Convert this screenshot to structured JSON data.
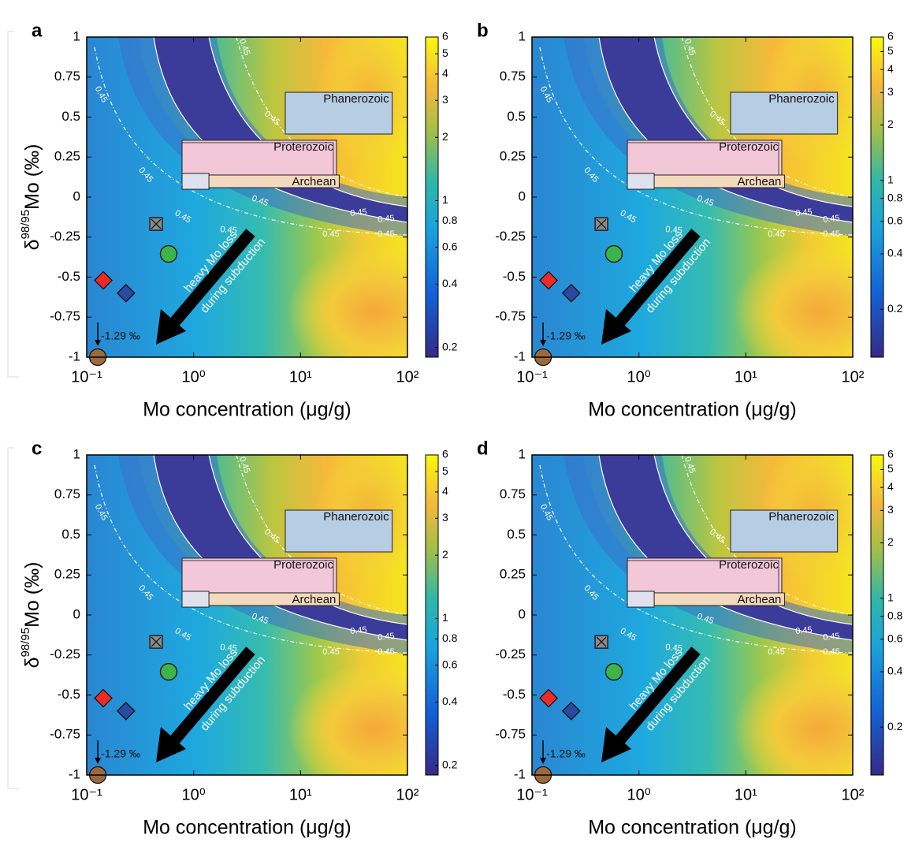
{
  "chart_data": [
    {
      "type": "contour",
      "panel_label": "a",
      "xlabel": "Mo concentration (μg/g)",
      "ylabel": {
        "prefix": "δ",
        "superscript": "98/95",
        "suffix": "Mo (‰)"
      },
      "xscale": "log",
      "xlim": [
        0.1,
        100
      ],
      "xticks": [
        {
          "value": 0.1,
          "label": "10⁻¹"
        },
        {
          "value": 1,
          "label": "10⁰"
        },
        {
          "value": 10,
          "label": "10¹"
        },
        {
          "value": 100,
          "label": "10²"
        }
      ],
      "ylim": [
        -1,
        1
      ],
      "yticks": [
        -1,
        -0.75,
        -0.5,
        -0.25,
        0,
        0.25,
        0.5,
        0.75,
        1
      ],
      "clim": [
        0.18,
        6
      ],
      "cscale": "log",
      "cticks": [
        0.2,
        0.4,
        0.6,
        0.8,
        1,
        2,
        3,
        4,
        5,
        6
      ],
      "contour_level": 0.45,
      "regions": [
        {
          "name": "Phanerozoic",
          "x": [
            7.2,
            72
          ],
          "y": [
            0.394,
            0.655
          ],
          "color": "#b7cde3"
        },
        {
          "name": "Proterozoic",
          "x": [
            0.78,
            21.7
          ],
          "y": [
            0.138,
            0.355
          ],
          "color": "#f2c7d8"
        },
        {
          "name": "Archean",
          "x": [
            0.78,
            23
          ],
          "y": [
            0.059,
            0.138
          ],
          "color": "#f3d9bd"
        },
        {
          "x": [
            0.78,
            1.39
          ],
          "y": [
            0.049,
            0.148
          ],
          "color": "#dfe1ee"
        }
      ],
      "points": [
        {
          "x": 0.143,
          "y": -0.52,
          "marker": "diamond",
          "color": "#ee2a24"
        },
        {
          "x": 0.233,
          "y": -0.6,
          "marker": "diamond",
          "color": "#2a4aa0"
        },
        {
          "x": 0.584,
          "y": -0.355,
          "marker": "circle",
          "color": "#3cb44a"
        },
        {
          "x": 0.446,
          "y": -0.168,
          "marker": "xsquare",
          "color": "#8a8a8a"
        },
        {
          "x": 0.127,
          "y": -1,
          "marker": "circle",
          "color": "#9b6a3c"
        }
      ],
      "annotations": [
        "heavy Mo loss",
        "during subduction",
        "-1.29 ‰"
      ]
    },
    {
      "type": "contour",
      "panel_label": "b",
      "xlabel": "Mo concentration (μg/g)",
      "xscale": "log",
      "xlim": [
        0.1,
        100
      ],
      "xticks": [
        {
          "value": 0.1,
          "label": "10⁻¹"
        },
        {
          "value": 1,
          "label": "10⁰"
        },
        {
          "value": 10,
          "label": "10¹"
        },
        {
          "value": 100,
          "label": "10²"
        }
      ],
      "ylim": [
        -1,
        1
      ],
      "yticks": [
        -1,
        -0.75,
        -0.5,
        -0.25,
        0,
        0.25,
        0.5,
        0.75,
        1
      ],
      "clim": [
        0.11,
        6
      ],
      "cscale": "log",
      "cticks": [
        0.2,
        0.4,
        0.6,
        0.8,
        1,
        2,
        3,
        4,
        5,
        6
      ],
      "contour_level": 0.45,
      "regions": [
        {
          "name": "Phanerozoic",
          "x": [
            7.2,
            72
          ],
          "y": [
            0.394,
            0.655
          ],
          "color": "#b7cde3"
        },
        {
          "name": "Proterozoic",
          "x": [
            0.78,
            21.7
          ],
          "y": [
            0.138,
            0.355
          ],
          "color": "#f2c7d8"
        },
        {
          "name": "Archean",
          "x": [
            0.78,
            23
          ],
          "y": [
            0.059,
            0.138
          ],
          "color": "#f3d9bd"
        },
        {
          "x": [
            0.78,
            1.39
          ],
          "y": [
            0.049,
            0.148
          ],
          "color": "#dfe1ee"
        }
      ],
      "points": [
        {
          "x": 0.143,
          "y": -0.52,
          "marker": "diamond",
          "color": "#ee2a24"
        },
        {
          "x": 0.233,
          "y": -0.6,
          "marker": "diamond",
          "color": "#2a4aa0"
        },
        {
          "x": 0.584,
          "y": -0.355,
          "marker": "circle",
          "color": "#3cb44a"
        },
        {
          "x": 0.446,
          "y": -0.168,
          "marker": "xsquare",
          "color": "#8a8a8a"
        },
        {
          "x": 0.127,
          "y": -1,
          "marker": "circle",
          "color": "#9b6a3c"
        }
      ],
      "annotations": [
        "heavy Mo loss",
        "during subduction",
        "-1.29 ‰"
      ]
    },
    {
      "type": "contour",
      "panel_label": "c",
      "xlabel": "Mo concentration (μg/g)",
      "ylabel": {
        "prefix": "δ",
        "superscript": "98/95",
        "suffix": "Mo (‰)"
      },
      "xscale": "log",
      "xlim": [
        0.1,
        100
      ],
      "xticks": [
        {
          "value": 0.1,
          "label": "10⁻¹"
        },
        {
          "value": 1,
          "label": "10⁰"
        },
        {
          "value": 10,
          "label": "10¹"
        },
        {
          "value": 100,
          "label": "10²"
        }
      ],
      "ylim": [
        -1,
        1
      ],
      "yticks": [
        -1,
        -0.75,
        -0.5,
        -0.25,
        0,
        0.25,
        0.5,
        0.75,
        1
      ],
      "clim": [
        0.18,
        6
      ],
      "cscale": "log",
      "cticks": [
        0.2,
        0.4,
        0.6,
        0.8,
        1,
        2,
        3,
        4,
        5,
        6
      ],
      "contour_level": 0.45,
      "regions": [
        {
          "name": "Phanerozoic",
          "x": [
            7.2,
            72
          ],
          "y": [
            0.394,
            0.655
          ],
          "color": "#b7cde3"
        },
        {
          "name": "Proterozoic",
          "x": [
            0.78,
            21.7
          ],
          "y": [
            0.138,
            0.355
          ],
          "color": "#f2c7d8"
        },
        {
          "name": "Archean",
          "x": [
            0.78,
            23
          ],
          "y": [
            0.059,
            0.138
          ],
          "color": "#f3d9bd"
        },
        {
          "x": [
            0.78,
            1.39
          ],
          "y": [
            0.049,
            0.148
          ],
          "color": "#dfe1ee"
        }
      ],
      "points": [
        {
          "x": 0.143,
          "y": -0.52,
          "marker": "diamond",
          "color": "#ee2a24"
        },
        {
          "x": 0.233,
          "y": -0.6,
          "marker": "diamond",
          "color": "#2a4aa0"
        },
        {
          "x": 0.584,
          "y": -0.355,
          "marker": "circle",
          "color": "#3cb44a"
        },
        {
          "x": 0.446,
          "y": -0.168,
          "marker": "xsquare",
          "color": "#8a8a8a"
        },
        {
          "x": 0.127,
          "y": -1,
          "marker": "circle",
          "color": "#9b6a3c"
        }
      ],
      "annotations": [
        "heavy Mo loss",
        "during subduction",
        "-1.29 ‰"
      ]
    },
    {
      "type": "contour",
      "panel_label": "d",
      "xlabel": "Mo concentration (μg/g)",
      "xscale": "log",
      "xlim": [
        0.1,
        100
      ],
      "xticks": [
        {
          "value": 0.1,
          "label": "10⁻¹"
        },
        {
          "value": 1,
          "label": "10⁰"
        },
        {
          "value": 10,
          "label": "10¹"
        },
        {
          "value": 100,
          "label": "10²"
        }
      ],
      "ylim": [
        -1,
        1
      ],
      "yticks": [
        -1,
        -0.75,
        -0.5,
        -0.25,
        0,
        0.25,
        0.5,
        0.75,
        1
      ],
      "clim": [
        0.11,
        6
      ],
      "cscale": "log",
      "cticks": [
        0.2,
        0.4,
        0.6,
        0.8,
        1,
        2,
        3,
        4,
        5,
        6
      ],
      "contour_level": 0.45,
      "regions": [
        {
          "name": "Phanerozoic",
          "x": [
            7.2,
            72
          ],
          "y": [
            0.394,
            0.655
          ],
          "color": "#b7cde3"
        },
        {
          "name": "Proterozoic",
          "x": [
            0.78,
            21.7
          ],
          "y": [
            0.138,
            0.355
          ],
          "color": "#f2c7d8"
        },
        {
          "name": "Archean",
          "x": [
            0.78,
            23
          ],
          "y": [
            0.059,
            0.138
          ],
          "color": "#f3d9bd"
        },
        {
          "x": [
            0.78,
            1.39
          ],
          "y": [
            0.049,
            0.148
          ],
          "color": "#dfe1ee"
        }
      ],
      "points": [
        {
          "x": 0.143,
          "y": -0.52,
          "marker": "diamond",
          "color": "#ee2a24"
        },
        {
          "x": 0.233,
          "y": -0.6,
          "marker": "diamond",
          "color": "#2a4aa0"
        },
        {
          "x": 0.584,
          "y": -0.355,
          "marker": "circle",
          "color": "#3cb44a"
        },
        {
          "x": 0.446,
          "y": -0.168,
          "marker": "xsquare",
          "color": "#8a8a8a"
        },
        {
          "x": 0.127,
          "y": -1,
          "marker": "circle",
          "color": "#9b6a3c"
        }
      ],
      "annotations": [
        "heavy Mo loss",
        "during subduction",
        "-1.29 ‰"
      ]
    }
  ]
}
